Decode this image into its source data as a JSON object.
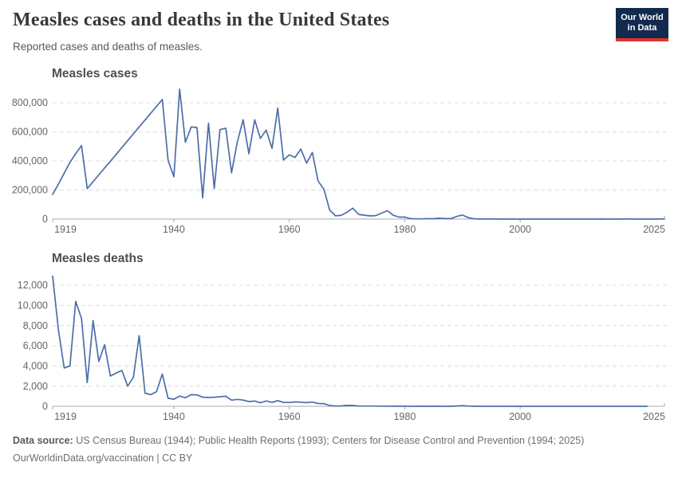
{
  "header": {
    "title": "Measles cases and deaths in the United States",
    "subtitle": "Reported cases and deaths of measles.",
    "logo": {
      "line1": "Our World",
      "line2": "in Data",
      "bg_color": "#122a4e",
      "accent_color": "#e0362c"
    }
  },
  "footer": {
    "source_label": "Data source:",
    "source_text": " US Census Bureau (1944); Public Health Reports (1993); Centers for Disease Control and Prevention (1994; 2025)",
    "attribution": "OurWorldinData.org/vaccination | CC BY"
  },
  "chart_data": [
    {
      "type": "line",
      "title": "Measles cases",
      "line_color": "#4c6ea9",
      "grid": true,
      "x_range": [
        1919,
        2025
      ],
      "y_range": [
        0,
        900000
      ],
      "x_ticks": [
        1919,
        1940,
        1960,
        1980,
        2000,
        2025
      ],
      "y_ticks": [
        {
          "value": 0,
          "label": "0"
        },
        {
          "value": 200000,
          "label": "200,000"
        },
        {
          "value": 400000,
          "label": "400,000"
        },
        {
          "value": 600000,
          "label": "600,000"
        },
        {
          "value": 800000,
          "label": "800,000"
        }
      ],
      "points": [
        [
          1919,
          170000
        ],
        [
          1920,
          240000
        ],
        [
          1921,
          316000
        ],
        [
          1922,
          390000
        ],
        [
          1923,
          450000
        ],
        [
          1924,
          505000
        ],
        [
          1925,
          210000
        ],
        [
          1926,
          257000
        ],
        [
          1927,
          304000
        ],
        [
          1928,
          351000
        ],
        [
          1929,
          398000
        ],
        [
          1930,
          445000
        ],
        [
          1931,
          492000
        ],
        [
          1932,
          540000
        ],
        [
          1933,
          587000
        ],
        [
          1934,
          634000
        ],
        [
          1935,
          681000
        ],
        [
          1936,
          728000
        ],
        [
          1937,
          775000
        ],
        [
          1938,
          822811
        ],
        [
          1939,
          404585
        ],
        [
          1940,
          291162
        ],
        [
          1941,
          894134
        ],
        [
          1942,
          527771
        ],
        [
          1943,
          633627
        ],
        [
          1944,
          630291
        ],
        [
          1945,
          146013
        ],
        [
          1946,
          659843
        ],
        [
          1947,
          210000
        ],
        [
          1948,
          615104
        ],
        [
          1949,
          625281
        ],
        [
          1950,
          319124
        ],
        [
          1951,
          530118
        ],
        [
          1952,
          683077
        ],
        [
          1953,
          449146
        ],
        [
          1954,
          682720
        ],
        [
          1955,
          555156
        ],
        [
          1956,
          611936
        ],
        [
          1957,
          486799
        ],
        [
          1958,
          763094
        ],
        [
          1959,
          406162
        ],
        [
          1960,
          441703
        ],
        [
          1961,
          423919
        ],
        [
          1962,
          481530
        ],
        [
          1963,
          385156
        ],
        [
          1964,
          458083
        ],
        [
          1965,
          261904
        ],
        [
          1966,
          204136
        ],
        [
          1967,
          62705
        ],
        [
          1968,
          22231
        ],
        [
          1969,
          25826
        ],
        [
          1970,
          47351
        ],
        [
          1971,
          75290
        ],
        [
          1972,
          32275
        ],
        [
          1973,
          26690
        ],
        [
          1974,
          22094
        ],
        [
          1975,
          24374
        ],
        [
          1976,
          41126
        ],
        [
          1977,
          57345
        ],
        [
          1978,
          26871
        ],
        [
          1979,
          13597
        ],
        [
          1980,
          13506
        ],
        [
          1981,
          3124
        ],
        [
          1982,
          1714
        ],
        [
          1983,
          1497
        ],
        [
          1984,
          2587
        ],
        [
          1985,
          2822
        ],
        [
          1986,
          6282
        ],
        [
          1987,
          3655
        ],
        [
          1988,
          3396
        ],
        [
          1989,
          18193
        ],
        [
          1990,
          27786
        ],
        [
          1991,
          9643
        ],
        [
          1992,
          2237
        ],
        [
          1993,
          312
        ],
        [
          1994,
          963
        ],
        [
          1995,
          309
        ],
        [
          1996,
          508
        ],
        [
          1997,
          138
        ],
        [
          1998,
          100
        ],
        [
          1999,
          100
        ],
        [
          2000,
          86
        ],
        [
          2001,
          116
        ],
        [
          2002,
          44
        ],
        [
          2003,
          56
        ],
        [
          2004,
          37
        ],
        [
          2005,
          66
        ],
        [
          2006,
          55
        ],
        [
          2007,
          43
        ],
        [
          2008,
          140
        ],
        [
          2009,
          71
        ],
        [
          2010,
          63
        ],
        [
          2011,
          220
        ],
        [
          2012,
          55
        ],
        [
          2013,
          187
        ],
        [
          2014,
          667
        ],
        [
          2015,
          188
        ],
        [
          2016,
          86
        ],
        [
          2017,
          120
        ],
        [
          2018,
          375
        ],
        [
          2019,
          1282
        ],
        [
          2020,
          13
        ],
        [
          2021,
          49
        ],
        [
          2022,
          121
        ],
        [
          2023,
          59
        ],
        [
          2024,
          285
        ],
        [
          2025,
          1288
        ]
      ]
    },
    {
      "type": "line",
      "title": "Measles deaths",
      "line_color": "#4c6ea9",
      "grid": true,
      "x_range": [
        1919,
        2025
      ],
      "y_range": [
        0,
        13000
      ],
      "x_ticks": [
        1919,
        1940,
        1960,
        1980,
        2000,
        2025
      ],
      "y_ticks": [
        {
          "value": 0,
          "label": "0"
        },
        {
          "value": 2000,
          "label": "2,000"
        },
        {
          "value": 4000,
          "label": "4,000"
        },
        {
          "value": 6000,
          "label": "6,000"
        },
        {
          "value": 8000,
          "label": "8,000"
        },
        {
          "value": 10000,
          "label": "10,000"
        },
        {
          "value": 12000,
          "label": "12,000"
        }
      ],
      "points": [
        [
          1919,
          12900
        ],
        [
          1920,
          7600
        ],
        [
          1921,
          3800
        ],
        [
          1922,
          4000
        ],
        [
          1923,
          10400
        ],
        [
          1924,
          8700
        ],
        [
          1925,
          2350
        ],
        [
          1926,
          8500
        ],
        [
          1927,
          4450
        ],
        [
          1928,
          6100
        ],
        [
          1929,
          3000
        ],
        [
          1930,
          3300
        ],
        [
          1931,
          3550
        ],
        [
          1932,
          2000
        ],
        [
          1933,
          2900
        ],
        [
          1934,
          7000
        ],
        [
          1935,
          1300
        ],
        [
          1936,
          1150
        ],
        [
          1937,
          1450
        ],
        [
          1938,
          3200
        ],
        [
          1939,
          800
        ],
        [
          1940,
          706
        ],
        [
          1941,
          1013
        ],
        [
          1942,
          850
        ],
        [
          1943,
          1153
        ],
        [
          1944,
          1126
        ],
        [
          1945,
          900
        ],
        [
          1946,
          880
        ],
        [
          1947,
          900
        ],
        [
          1948,
          950
        ],
        [
          1949,
          1000
        ],
        [
          1950,
          610
        ],
        [
          1951,
          683
        ],
        [
          1952,
          618
        ],
        [
          1953,
          462
        ],
        [
          1954,
          518
        ],
        [
          1955,
          345
        ],
        [
          1956,
          530
        ],
        [
          1957,
          389
        ],
        [
          1958,
          552
        ],
        [
          1959,
          385
        ],
        [
          1960,
          380
        ],
        [
          1961,
          434
        ],
        [
          1962,
          408
        ],
        [
          1963,
          364
        ],
        [
          1964,
          421
        ],
        [
          1965,
          276
        ],
        [
          1966,
          261
        ],
        [
          1967,
          81
        ],
        [
          1968,
          24
        ],
        [
          1969,
          41
        ],
        [
          1970,
          89
        ],
        [
          1971,
          90
        ],
        [
          1972,
          24
        ],
        [
          1973,
          23
        ],
        [
          1974,
          20
        ],
        [
          1975,
          20
        ],
        [
          1976,
          12
        ],
        [
          1977,
          15
        ],
        [
          1978,
          11
        ],
        [
          1979,
          6
        ],
        [
          1980,
          11
        ],
        [
          1981,
          2
        ],
        [
          1982,
          2
        ],
        [
          1983,
          4
        ],
        [
          1984,
          1
        ],
        [
          1985,
          4
        ],
        [
          1986,
          2
        ],
        [
          1987,
          2
        ],
        [
          1988,
          3
        ],
        [
          1989,
          32
        ],
        [
          1990,
          64
        ],
        [
          1991,
          27
        ],
        [
          1992,
          4
        ],
        [
          1993,
          0
        ],
        [
          1994,
          0
        ],
        [
          1995,
          2
        ],
        [
          1996,
          1
        ],
        [
          1997,
          2
        ],
        [
          1998,
          0
        ],
        [
          1999,
          2
        ],
        [
          2000,
          1
        ],
        [
          2001,
          1
        ],
        [
          2002,
          0
        ],
        [
          2003,
          1
        ],
        [
          2004,
          0
        ],
        [
          2005,
          1
        ],
        [
          2006,
          0
        ],
        [
          2007,
          0
        ],
        [
          2008,
          0
        ],
        [
          2009,
          2
        ],
        [
          2010,
          2
        ],
        [
          2011,
          0
        ],
        [
          2012,
          0
        ],
        [
          2013,
          0
        ],
        [
          2014,
          0
        ],
        [
          2015,
          1
        ],
        [
          2016,
          0
        ],
        [
          2017,
          0
        ],
        [
          2018,
          0
        ],
        [
          2019,
          0
        ],
        [
          2020,
          0
        ],
        [
          2021,
          0
        ],
        [
          2022,
          0
        ]
      ]
    }
  ]
}
